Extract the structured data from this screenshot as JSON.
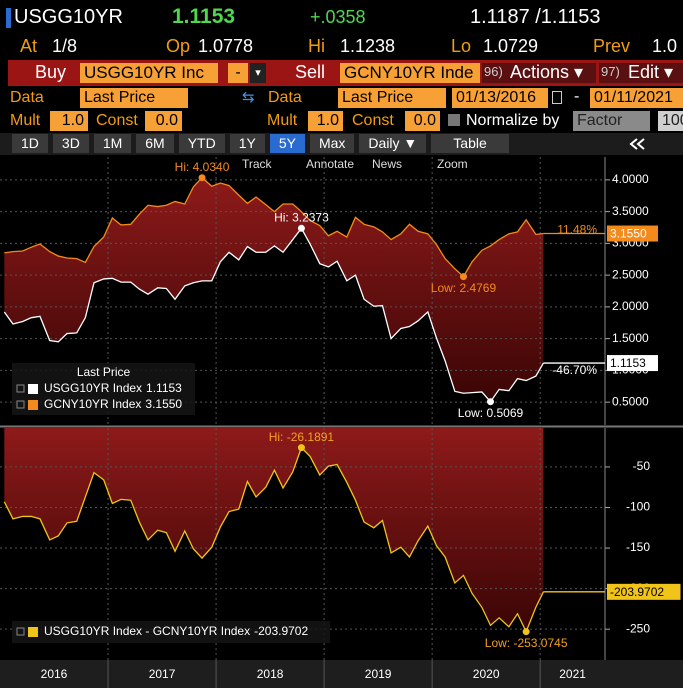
{
  "header": {
    "ticker": "USGG10YR",
    "last": "1.1153",
    "change": "+.0358",
    "bid_ask": "1.1187 /1.1153"
  },
  "quote": [
    {
      "label": "At",
      "value": "1/8"
    },
    {
      "label": "Op",
      "value": "1.0778"
    },
    {
      "label": "Hi",
      "value": "1.1238"
    },
    {
      "label": "Lo",
      "value": "1.0729"
    },
    {
      "label": "Prev",
      "value": "1.0"
    }
  ],
  "order_bar": {
    "buy": "Buy",
    "buy_security": "USGG10YR Inc",
    "minus": "-",
    "sell": "Sell",
    "sell_security": "GCNY10YR Inde",
    "actions_num": "96)",
    "actions": "Actions ▾",
    "edit_num": "97)",
    "edit": "Edit ▾"
  },
  "data_row": {
    "data1": "Data",
    "field1": "Last Price",
    "data2": "Data",
    "field2": "Last Price",
    "start": "01/13/2016",
    "dash": "-",
    "end": "01/11/2021"
  },
  "mult_row": {
    "mult1": "Mult",
    "mult1_value": "1.0",
    "const1": "Const",
    "const1_value": "0.0",
    "mult2": "Mult",
    "mult2_value": "1.0",
    "const2": "Const",
    "const2_value": "0.0",
    "normalize": "Normalize by",
    "factor": "Factor",
    "factor_value": "100"
  },
  "tabs": [
    "1D",
    "3D",
    "1M",
    "6M",
    "YTD",
    "1Y",
    "5Y",
    "Max",
    "Daily ▼",
    "Table"
  ],
  "chart_tools": [
    "Track",
    "Annotate",
    "News",
    "Zoom"
  ],
  "chart_data": [
    {
      "type": "line",
      "fill": "between",
      "fill_color": "#7a1010",
      "grid": true,
      "legend_title": "Last Price",
      "xlim": [
        2016,
        2021.6
      ],
      "x_gridlines": [
        2017,
        2018,
        2019,
        2020,
        2021
      ],
      "ylim": [
        0.14,
        4.36
      ],
      "yticks": [
        {
          "value": 0.5,
          "label": "0.5000"
        },
        {
          "value": 1,
          "label": "1.0000"
        },
        {
          "value": 1.5,
          "label": "1.5000"
        },
        {
          "value": 2,
          "label": "2.0000"
        },
        {
          "value": 2.5,
          "label": "2.5000"
        },
        {
          "value": 3,
          "label": "3.0000"
        },
        {
          "value": 3.5,
          "label": "3.5000"
        },
        {
          "value": 4,
          "label": "4.0000"
        }
      ],
      "x": [
        2016.04,
        2016.12,
        2016.21,
        2016.29,
        2016.37,
        2016.46,
        2016.54,
        2016.62,
        2016.71,
        2016.79,
        2016.87,
        2016.96,
        2017.04,
        2017.12,
        2017.21,
        2017.29,
        2017.37,
        2017.46,
        2017.54,
        2017.62,
        2017.71,
        2017.79,
        2017.87,
        2017.96,
        2018.04,
        2018.12,
        2018.21,
        2018.29,
        2018.37,
        2018.46,
        2018.54,
        2018.62,
        2018.71,
        2018.79,
        2018.87,
        2018.96,
        2019.04,
        2019.12,
        2019.21,
        2019.29,
        2019.37,
        2019.46,
        2019.54,
        2019.62,
        2019.71,
        2019.79,
        2019.87,
        2019.96,
        2020.04,
        2020.12,
        2020.21,
        2020.29,
        2020.37,
        2020.46,
        2020.54,
        2020.62,
        2020.71,
        2020.79,
        2020.87,
        2020.96,
        2021.03
      ],
      "series": [
        {
          "name": "USGG10YR Index",
          "color": "#ffffff",
          "last": {
            "value": 1.1153,
            "label": "1.1153"
          },
          "last_text_color": "#000000",
          "change_label": "-46.70%",
          "values": [
            1.92,
            1.73,
            1.77,
            1.83,
            1.85,
            1.47,
            1.45,
            1.58,
            1.59,
            1.83,
            2.38,
            2.44,
            2.45,
            2.39,
            2.39,
            2.28,
            2.2,
            2.3,
            2.29,
            2.12,
            2.33,
            2.38,
            2.41,
            2.41,
            2.71,
            2.86,
            2.74,
            2.95,
            2.86,
            2.86,
            2.96,
            2.86,
            3.06,
            3.2373,
            2.99,
            2.68,
            2.63,
            2.72,
            2.41,
            2.5,
            2.12,
            2.01,
            2.02,
            1.5,
            1.66,
            1.69,
            1.78,
            1.92,
            1.51,
            1.15,
            0.67,
            0.64,
            0.65,
            0.66,
            0.5069,
            0.7,
            0.68,
            0.87,
            0.84,
            0.91,
            1.1153
          ]
        },
        {
          "name": "GCNY10YR Index",
          "color": "#f48a1c",
          "last": {
            "value": 3.155,
            "label": "3.1550"
          },
          "last_text_color": "#ffffff",
          "change_label": "11.48%",
          "values": [
            2.85,
            2.87,
            2.88,
            2.94,
            2.99,
            2.87,
            2.8,
            2.77,
            2.76,
            2.7,
            2.95,
            3.1,
            3.4,
            3.29,
            3.3,
            3.46,
            3.6,
            3.58,
            3.6,
            3.66,
            3.62,
            3.89,
            4.034,
            3.9,
            3.95,
            3.91,
            3.76,
            3.63,
            3.73,
            3.61,
            3.5,
            3.62,
            3.62,
            3.4992,
            3.36,
            3.28,
            3.12,
            3.19,
            3.1,
            3.41,
            3.3,
            3.26,
            3.18,
            3.06,
            3.15,
            3.3,
            3.19,
            3.15,
            2.98,
            2.76,
            2.6,
            2.4769,
            2.71,
            2.89,
            2.96,
            3.06,
            3.15,
            3.18,
            3.3707,
            3.14,
            3.155
          ]
        }
      ],
      "annotations": [
        {
          "label": "Hi: 4.0340",
          "x": 2017.87,
          "y": 4.034,
          "color": "#f48a1c",
          "placement": "above"
        },
        {
          "label": "Hi: 3.2373",
          "x": 2018.79,
          "y": 3.2373,
          "color": "#ffffff",
          "placement": "above"
        },
        {
          "label": "Low: 2.4769",
          "x": 2020.29,
          "y": 2.4769,
          "color": "#f48a1c",
          "placement": "below"
        },
        {
          "label": "Low: 0.5069",
          "x": 2020.54,
          "y": 0.5069,
          "color": "#ffffff",
          "placement": "below"
        }
      ]
    },
    {
      "type": "line",
      "fill": "above",
      "fill_color": "#7a1010",
      "grid": true,
      "xlim": [
        2016,
        2021.6
      ],
      "x_gridlines": [
        2017,
        2018,
        2019,
        2020,
        2021
      ],
      "xticks": [
        {
          "value": 2016.5,
          "label": "2016"
        },
        {
          "value": 2017.5,
          "label": "2017"
        },
        {
          "value": 2018.5,
          "label": "2018"
        },
        {
          "value": 2019.5,
          "label": "2019"
        },
        {
          "value": 2020.5,
          "label": "2020"
        },
        {
          "value": 2021.3,
          "label": "2021"
        }
      ],
      "ylim": [
        -288,
        -2
      ],
      "yticks": [
        -250,
        -200,
        -150,
        -100,
        -50
      ],
      "x": [
        2016.04,
        2016.12,
        2016.21,
        2016.29,
        2016.37,
        2016.46,
        2016.54,
        2016.62,
        2016.71,
        2016.79,
        2016.87,
        2016.96,
        2017.04,
        2017.12,
        2017.21,
        2017.29,
        2017.37,
        2017.46,
        2017.54,
        2017.62,
        2017.71,
        2017.79,
        2017.87,
        2017.96,
        2018.04,
        2018.12,
        2018.21,
        2018.29,
        2018.37,
        2018.46,
        2018.54,
        2018.62,
        2018.71,
        2018.79,
        2018.87,
        2018.96,
        2019.04,
        2019.12,
        2019.21,
        2019.29,
        2019.37,
        2019.46,
        2019.54,
        2019.62,
        2019.71,
        2019.79,
        2019.87,
        2019.96,
        2020.04,
        2020.12,
        2020.21,
        2020.29,
        2020.37,
        2020.46,
        2020.54,
        2020.62,
        2020.71,
        2020.79,
        2020.87,
        2020.96,
        2021.03
      ],
      "series": [
        {
          "name": "USGG10YR Index - GCNY10YR Index",
          "color": "#f0c419",
          "last": {
            "value": -203.9702,
            "label": "-203.9702"
          },
          "last_text_color": "#000000",
          "values": [
            -93,
            -114,
            -111,
            -111,
            -114,
            -140,
            -135,
            -119,
            -117,
            -87,
            -57,
            -66,
            -95,
            -90,
            -91,
            -118,
            -140,
            -128,
            -131,
            -154,
            -129,
            -151,
            -162.4,
            -149,
            -124,
            -105,
            -102,
            -68,
            -87,
            -75,
            -54,
            -76,
            -56,
            -26.1891,
            -37,
            -60,
            -49,
            -47,
            -69,
            -91,
            -118,
            -125,
            -116,
            -156,
            -149,
            -161,
            -141,
            -123,
            -147,
            -161,
            -193,
            -183.69,
            -206,
            -223,
            -245.31,
            -236,
            -247,
            -231,
            -253.0745,
            -223,
            -203.9702
          ]
        }
      ],
      "annotations": [
        {
          "label": "Hi: -26.1891",
          "x": 2018.79,
          "y": -26.1891,
          "color": "#f4a020",
          "placement": "above"
        },
        {
          "label": "Low: -253.0745",
          "x": 2020.87,
          "y": -253.0745,
          "color": "#f4a020",
          "placement": "below"
        }
      ]
    }
  ]
}
